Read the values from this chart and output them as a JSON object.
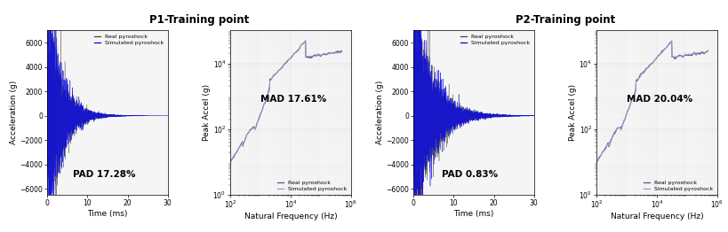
{
  "title_p1": "P1-Training point",
  "title_p2": "P2-Training point",
  "pad_p1": "PAD 17.28%",
  "mad_p1": "MAD 17.61%",
  "pad_p2": "PAD 0.83%",
  "mad_p2": "MAD 20.04%",
  "time_xlabel": "Time (ms)",
  "time_ylabel": "Acceleration (g)",
  "freq_xlabel": "Natural Frequency (Hz)",
  "freq_ylabel": "Peak Accel (g)",
  "time_xlim": [
    0,
    30
  ],
  "time_ylim": [
    -6500,
    7000
  ],
  "color_real_time": "#444444",
  "color_sim_time": "#0000ee",
  "color_real_srs": "#555577",
  "color_sim_srs": "#9999cc",
  "bg_color": "#f5f5f5",
  "legend_labels": [
    "Real pyroshock",
    "Simulated pyroshock"
  ],
  "time_yticks": [
    -6000,
    -4000,
    -2000,
    0,
    2000,
    4000,
    6000
  ],
  "time_xticks": [
    0,
    10,
    20,
    30
  ]
}
